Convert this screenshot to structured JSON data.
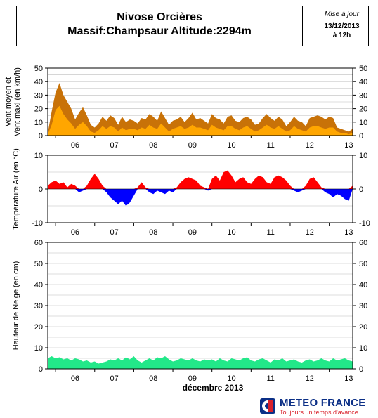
{
  "header": {
    "title_line1": "Nivose Orcières",
    "title_line2": "Massif:Champsaur Altitude:2294m"
  },
  "update": {
    "label": "Mise à jour",
    "date": "13/12/2013",
    "time": "à 12h"
  },
  "footer": {
    "brand": "METEO FRANCE",
    "slogan": "Toujours un temps d'avance",
    "logo_icon": "meteo-france-logo-icon"
  },
  "colors": {
    "wind_max": "#c87208",
    "wind_mean": "#ffa600",
    "temp_positive": "#ff0000",
    "temp_negative": "#0000ff",
    "snow": "#22e889"
  },
  "chart_data": [
    {
      "type": "area",
      "ylabel": "Vent moyen et Vent maxi (en km/h)",
      "ylim": [
        0,
        50
      ],
      "yticks": [
        0,
        10,
        20,
        30,
        40,
        50
      ],
      "x_tick_labels": [
        "06",
        "07",
        "08",
        "09",
        "10",
        "11",
        "12",
        "13"
      ],
      "x_tick_days": [
        6,
        7,
        8,
        9,
        10,
        11,
        12,
        13
      ],
      "xlim_days": [
        5.8,
        13.6
      ],
      "grid": true,
      "series": [
        {
          "role": "wind_max",
          "x": [
            5.8,
            5.9,
            6.0,
            6.1,
            6.2,
            6.3,
            6.4,
            6.5,
            6.6,
            6.7,
            6.8,
            6.9,
            7.0,
            7.1,
            7.2,
            7.3,
            7.4,
            7.5,
            7.6,
            7.7,
            7.8,
            7.9,
            8.0,
            8.1,
            8.2,
            8.3,
            8.4,
            8.5,
            8.6,
            8.7,
            8.8,
            8.9,
            9.0,
            9.1,
            9.2,
            9.3,
            9.4,
            9.5,
            9.6,
            9.7,
            9.8,
            9.9,
            10.0,
            10.1,
            10.2,
            10.3,
            10.4,
            10.5,
            10.6,
            10.7,
            10.8,
            10.9,
            11.0,
            11.1,
            11.2,
            11.3,
            11.4,
            11.5,
            11.6,
            11.7,
            11.8,
            11.9,
            12.0,
            12.1,
            12.2,
            12.3,
            12.4,
            12.5,
            12.6,
            12.7,
            12.8,
            12.9,
            13.0,
            13.1,
            13.2,
            13.3,
            13.4,
            13.5,
            13.6
          ],
          "values": [
            2,
            18,
            32,
            39,
            30,
            25,
            20,
            12,
            17,
            21,
            15,
            8,
            6,
            9,
            14,
            11,
            15,
            13,
            8,
            14,
            10,
            12,
            11,
            9,
            13,
            12,
            16,
            14,
            11,
            18,
            13,
            8,
            11,
            12,
            14,
            10,
            13,
            17,
            12,
            13,
            11,
            9,
            16,
            13,
            12,
            9,
            14,
            15,
            11,
            10,
            13,
            14,
            12,
            8,
            9,
            13,
            16,
            13,
            11,
            14,
            12,
            7,
            10,
            14,
            11,
            10,
            7,
            13,
            14,
            15,
            14,
            12,
            14,
            13,
            6,
            5,
            4,
            3,
            5
          ]
        },
        {
          "role": "wind_mean",
          "x": [
            5.8,
            5.9,
            6.0,
            6.1,
            6.2,
            6.3,
            6.4,
            6.5,
            6.6,
            6.7,
            6.8,
            6.9,
            7.0,
            7.1,
            7.2,
            7.3,
            7.4,
            7.5,
            7.6,
            7.7,
            7.8,
            7.9,
            8.0,
            8.1,
            8.2,
            8.3,
            8.4,
            8.5,
            8.6,
            8.7,
            8.8,
            8.9,
            9.0,
            9.1,
            9.2,
            9.3,
            9.4,
            9.5,
            9.6,
            9.7,
            9.8,
            9.9,
            10.0,
            10.1,
            10.2,
            10.3,
            10.4,
            10.5,
            10.6,
            10.7,
            10.8,
            10.9,
            11.0,
            11.1,
            11.2,
            11.3,
            11.4,
            11.5,
            11.6,
            11.7,
            11.8,
            11.9,
            12.0,
            12.1,
            12.2,
            12.3,
            12.4,
            12.5,
            12.6,
            12.7,
            12.8,
            12.9,
            13.0,
            13.1,
            13.2,
            13.3,
            13.4,
            13.5,
            13.6
          ],
          "values": [
            1,
            8,
            19,
            22,
            16,
            12,
            9,
            5,
            8,
            10,
            7,
            3,
            2,
            4,
            7,
            5,
            7,
            6,
            3,
            6,
            4,
            5,
            5,
            4,
            6,
            5,
            8,
            6,
            5,
            9,
            6,
            3,
            5,
            6,
            7,
            5,
            6,
            8,
            6,
            6,
            5,
            4,
            8,
            6,
            5,
            4,
            7,
            7,
            5,
            4,
            6,
            7,
            5,
            3,
            4,
            6,
            8,
            6,
            5,
            7,
            5,
            3,
            4,
            7,
            5,
            4,
            3,
            6,
            7,
            7,
            6,
            5,
            6,
            6,
            3,
            2,
            2,
            1,
            2
          ]
        }
      ]
    },
    {
      "type": "area",
      "ylabel": "Température Air (en °C)",
      "ylim": [
        -10,
        10
      ],
      "yticks": [
        -10,
        0,
        10
      ],
      "x_tick_labels": [
        "06",
        "07",
        "08",
        "09",
        "10",
        "11",
        "12",
        "13"
      ],
      "x_tick_days": [
        6,
        7,
        8,
        9,
        10,
        11,
        12,
        13
      ],
      "xlim_days": [
        5.8,
        13.6
      ],
      "grid": true,
      "series": [
        {
          "role": "temperature",
          "x": [
            5.8,
            5.9,
            6.0,
            6.1,
            6.2,
            6.3,
            6.4,
            6.5,
            6.6,
            6.7,
            6.8,
            6.9,
            7.0,
            7.1,
            7.2,
            7.3,
            7.4,
            7.5,
            7.6,
            7.7,
            7.8,
            7.9,
            8.0,
            8.1,
            8.2,
            8.3,
            8.4,
            8.5,
            8.6,
            8.7,
            8.8,
            8.9,
            9.0,
            9.1,
            9.2,
            9.3,
            9.4,
            9.5,
            9.6,
            9.7,
            9.8,
            9.9,
            10.0,
            10.1,
            10.2,
            10.3,
            10.4,
            10.5,
            10.6,
            10.7,
            10.8,
            10.9,
            11.0,
            11.1,
            11.2,
            11.3,
            11.4,
            11.5,
            11.6,
            11.7,
            11.8,
            11.9,
            12.0,
            12.1,
            12.2,
            12.3,
            12.4,
            12.5,
            12.6,
            12.7,
            12.8,
            12.9,
            13.0,
            13.1,
            13.2,
            13.3,
            13.4,
            13.5,
            13.6
          ],
          "values": [
            1,
            2,
            2.5,
            1.5,
            2,
            0.5,
            1.5,
            1,
            -1,
            -0.5,
            1,
            3,
            4.5,
            3,
            1,
            -1,
            -2.5,
            -3.5,
            -4.5,
            -3.5,
            -5,
            -4,
            -2,
            0.5,
            2,
            0.5,
            -1,
            -1.5,
            -0.5,
            -1,
            -1.5,
            -0.5,
            -1,
            0.5,
            2,
            3,
            3.5,
            3,
            2.5,
            1,
            0.5,
            -0.5,
            3,
            4,
            2.5,
            5,
            5.5,
            4,
            2,
            3,
            3.5,
            2,
            1.5,
            3,
            4,
            3.5,
            2,
            1.5,
            3.5,
            4,
            3.5,
            2.5,
            1,
            -0.5,
            -1,
            -0.5,
            1,
            3,
            3.5,
            2,
            0.5,
            -1,
            -1.5,
            -2.5,
            -1.5,
            -2,
            -3,
            -3.5,
            1
          ]
        }
      ]
    },
    {
      "type": "area",
      "ylabel": "Hauteur de Neige (en cm)",
      "ylim": [
        0,
        60
      ],
      "yticks": [
        0,
        10,
        20,
        30,
        40,
        50,
        60
      ],
      "x_tick_labels": [
        "06",
        "07",
        "08",
        "09",
        "10",
        "11",
        "12",
        "13"
      ],
      "x_tick_days": [
        6,
        7,
        8,
        9,
        10,
        11,
        12,
        13
      ],
      "xlim_days": [
        5.8,
        13.6
      ],
      "xlabel": "décembre 2013",
      "grid": true,
      "series": [
        {
          "role": "snow",
          "x": [
            5.8,
            5.9,
            6.0,
            6.1,
            6.2,
            6.3,
            6.4,
            6.5,
            6.6,
            6.7,
            6.8,
            6.9,
            7.0,
            7.1,
            7.2,
            7.3,
            7.4,
            7.5,
            7.6,
            7.7,
            7.8,
            7.9,
            8.0,
            8.1,
            8.2,
            8.3,
            8.4,
            8.5,
            8.6,
            8.7,
            8.8,
            8.9,
            9.0,
            9.1,
            9.2,
            9.3,
            9.4,
            9.5,
            9.6,
            9.7,
            9.8,
            9.9,
            10.0,
            10.1,
            10.2,
            10.3,
            10.4,
            10.5,
            10.6,
            10.7,
            10.8,
            10.9,
            11.0,
            11.1,
            11.2,
            11.3,
            11.4,
            11.5,
            11.6,
            11.7,
            11.8,
            11.9,
            12.0,
            12.1,
            12.2,
            12.3,
            12.4,
            12.5,
            12.6,
            12.7,
            12.8,
            12.9,
            13.0,
            13.1,
            13.2,
            13.3,
            13.4,
            13.5,
            13.6
          ],
          "values": [
            5,
            6,
            5,
            5.5,
            4.5,
            5,
            4,
            5,
            4.5,
            3.5,
            4,
            3,
            3.5,
            2.5,
            3,
            3.5,
            4.5,
            4,
            5,
            4,
            5.5,
            4.5,
            6,
            4,
            3,
            4,
            5,
            4,
            5.5,
            5,
            6,
            4.5,
            3.5,
            4,
            5,
            4.5,
            4,
            5,
            4,
            3.5,
            4.5,
            4,
            4.5,
            3.5,
            5,
            4,
            3.5,
            5,
            4.5,
            4,
            5,
            5.5,
            4,
            3.5,
            4.5,
            5,
            4,
            3,
            4.5,
            4,
            5,
            3.5,
            4,
            4.5,
            3.5,
            3,
            4,
            4.5,
            3.5,
            4,
            5,
            4,
            3.5,
            5,
            4,
            4.5,
            5,
            4,
            3.5
          ]
        }
      ]
    }
  ]
}
